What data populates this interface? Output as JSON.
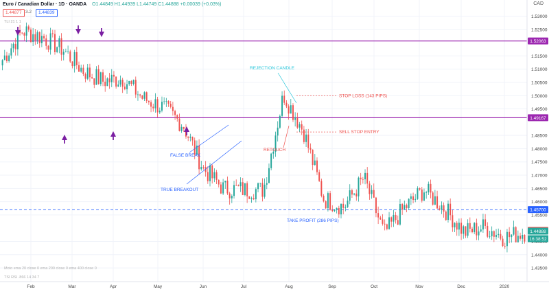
{
  "header": {
    "symbol": "Euro / Canadian Dollar · 1D · OANDA",
    "ohlc": "O1.44849 H1.44939 L1.44749 C1.44888 +0.00039 (+0.03%)",
    "sell_price": "1.44877",
    "spread": "3.2",
    "buy_price": "1.44839",
    "indicator_line": "TLI 21 1 1",
    "currency": "CAD"
  },
  "footer": {
    "indicator_1": "Moto ema 20 close 0 ema 200 close 0 ema 400 close 0",
    "indicator_2": "TSI RSI .866 14 34 7"
  },
  "colors": {
    "up": "#26a69a",
    "down": "#ef5350",
    "level": "#9c27b0",
    "arrow": "#7b1fa2",
    "annotation_blue": "#2962ff",
    "annotation_teal": "#26c6da",
    "annotation_red": "#ef5350"
  },
  "chart_data": {
    "type": "candlestick",
    "x_labels": [
      "Feb",
      "Mar",
      "Apr",
      "May",
      "Jun",
      "Jul",
      "Aug",
      "Sep",
      "Oct",
      "Nov",
      "Dec",
      "2020"
    ],
    "y_ticks": [
      "1.53000",
      "1.52500",
      "1.51500",
      "1.51000",
      "1.50500",
      "1.50000",
      "1.49500",
      "1.48500",
      "1.48000",
      "1.47500",
      "1.47000",
      "1.46500",
      "1.46000",
      "1.45500",
      "1.44500",
      "1.44000",
      "1.43500"
    ],
    "ylim": [
      1.4345,
      1.5335
    ],
    "levels": [
      {
        "price": 1.52063,
        "label": "1.52063",
        "color": "#9c27b0"
      },
      {
        "price": 1.49167,
        "label": "1.49167",
        "color": "#9c27b0"
      },
      {
        "price": 1.457,
        "label": "1.45700",
        "color": "#2962ff",
        "dashed": true
      },
      {
        "price": 1.44916,
        "label": "1.44916",
        "color": "#ef5350"
      },
      {
        "price": 1.44888,
        "label": "1.44888",
        "color": "#26a69a"
      }
    ],
    "countdown": "16:38:52",
    "annotations": [
      {
        "text": "REJECTION CANDLE",
        "color": "#26c6da"
      },
      {
        "text": "STOP LOSS (143 PIPS)",
        "color": "#ef5350"
      },
      {
        "text": "SELL STOP ENTRY",
        "color": "#ef5350"
      },
      {
        "text": "RETOUCH",
        "color": "#ef5350"
      },
      {
        "text": "FALSE BREAK",
        "color": "#2962ff"
      },
      {
        "text": "TRUE BREAKOUT",
        "color": "#2962ff"
      },
      {
        "text": "TAKE PROFIT (286 PIPS)",
        "color": "#2962ff"
      }
    ],
    "key_prices": [
      1.5135,
      1.5245,
      1.522,
      1.5175,
      1.5095,
      1.5055,
      1.5065,
      1.499,
      1.4955,
      1.489,
      1.4725,
      1.465,
      1.4645,
      1.4645,
      1.5005,
      1.4865,
      1.461,
      1.458,
      1.469,
      1.448,
      1.4575,
      1.4645,
      1.4575,
      1.4485,
      1.4505,
      1.4465,
      1.4485
    ]
  }
}
